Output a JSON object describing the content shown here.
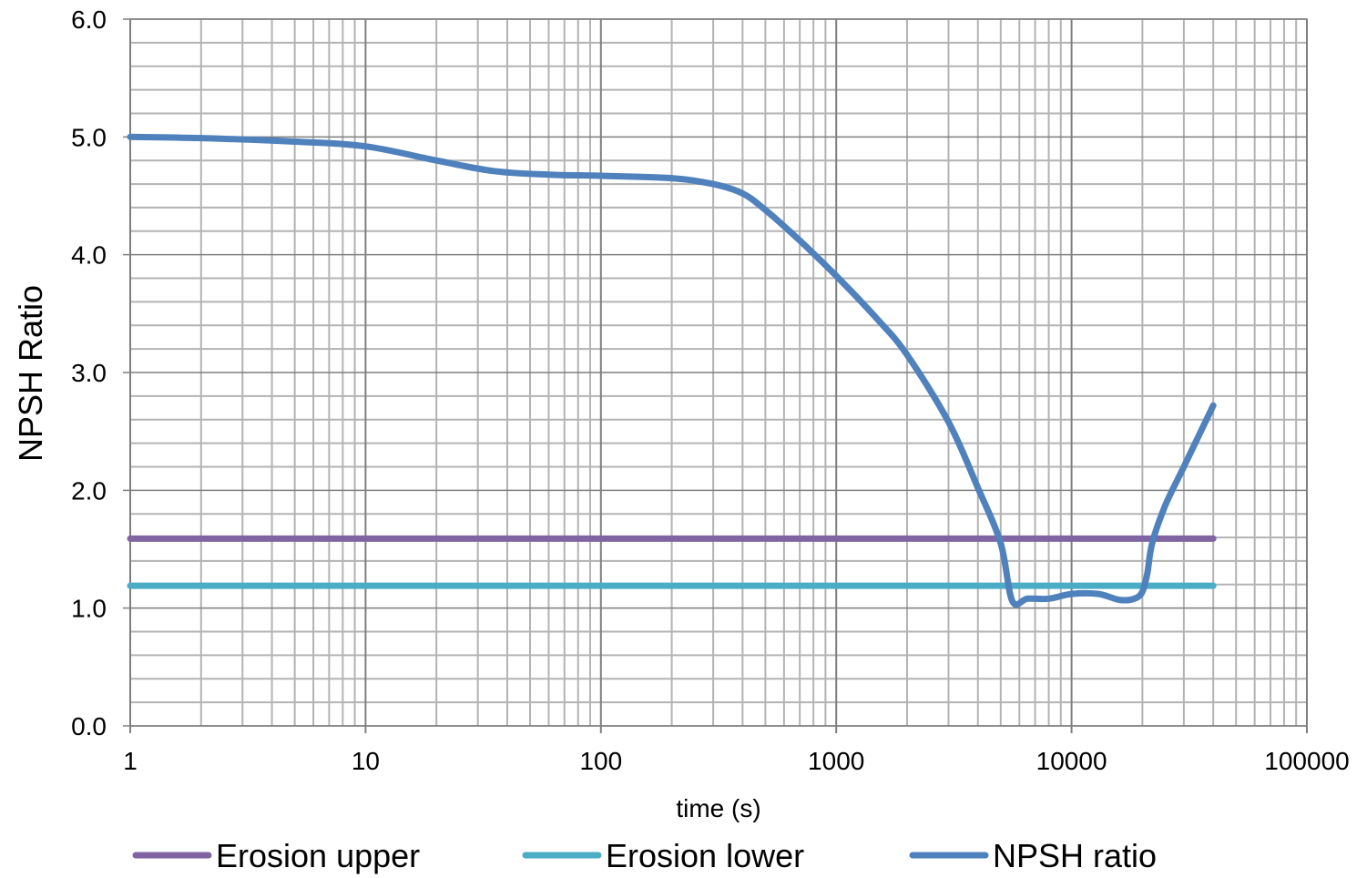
{
  "chart_data": {
    "type": "line",
    "xscale": "log",
    "xlim": [
      1,
      100000
    ],
    "ylim": [
      0,
      6
    ],
    "grid": true,
    "legend_position": "bottom",
    "xlabel": "time (s)",
    "ylabel": "NPSH Ratio",
    "x_tick_labels": [
      "1",
      "10",
      "100",
      "1000",
      "10000",
      "100000"
    ],
    "y_tick_labels": [
      "0.0",
      "1.0",
      "2.0",
      "3.0",
      "4.0",
      "5.0",
      "6.0"
    ],
    "series": [
      {
        "name": "Erosion upper",
        "color": "#8064a2",
        "x": [
          1,
          40000
        ],
        "y": [
          1.59,
          1.59
        ]
      },
      {
        "name": "Erosion lower",
        "color": "#4bacc6",
        "x": [
          1,
          40000
        ],
        "y": [
          1.19,
          1.19
        ]
      },
      {
        "name": "NPSH ratio",
        "color": "#4f81bd",
        "x": [
          1,
          2,
          5,
          10,
          20,
          35,
          60,
          100,
          200,
          300,
          400,
          500,
          700,
          1000,
          1500,
          2000,
          3000,
          4000,
          5000,
          5600,
          6500,
          8000,
          10000,
          13000,
          16000,
          18500,
          20000,
          21000,
          22000,
          25000,
          30000,
          40000
        ],
        "y": [
          5.0,
          4.99,
          4.96,
          4.92,
          4.8,
          4.71,
          4.68,
          4.67,
          4.65,
          4.6,
          4.52,
          4.38,
          4.12,
          3.82,
          3.45,
          3.15,
          2.58,
          2.02,
          1.55,
          1.06,
          1.08,
          1.08,
          1.12,
          1.12,
          1.07,
          1.08,
          1.14,
          1.3,
          1.55,
          1.87,
          2.2,
          2.72
        ]
      }
    ]
  }
}
